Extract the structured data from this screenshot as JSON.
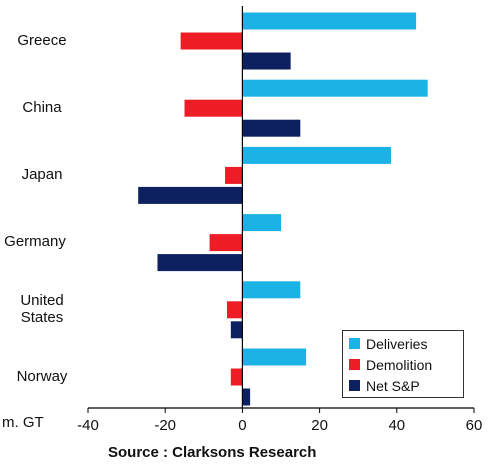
{
  "chart_data": {
    "type": "bar",
    "orientation": "horizontal",
    "categories": [
      "Greece",
      "China",
      "Japan",
      "Germany",
      "United States",
      "Norway"
    ],
    "category_lines": [
      [
        "Greece"
      ],
      [
        "China"
      ],
      [
        "Japan"
      ],
      [
        "Germany"
      ],
      [
        "United",
        "States"
      ],
      [
        "Norway"
      ]
    ],
    "series": [
      {
        "name": "Deliveries",
        "color": "#1bb3e6",
        "values": [
          45,
          48,
          38.5,
          10,
          15,
          16.5
        ]
      },
      {
        "name": "Demolition",
        "color": "#ee1c25",
        "values": [
          -16,
          -15,
          -4.5,
          -8.5,
          -4,
          -3
        ]
      },
      {
        "name": "Net S&P",
        "color": "#0d2060",
        "values": [
          12.5,
          15,
          -27,
          -22,
          -3,
          2
        ]
      }
    ],
    "xlim": [
      -40,
      60
    ],
    "xticks": [
      "-40",
      "-20",
      "0",
      "20",
      "40",
      "60"
    ],
    "unit_label": "m. GT",
    "source": "Source : Clarksons Research",
    "legend_position": "bottom-right",
    "grid": false
  }
}
